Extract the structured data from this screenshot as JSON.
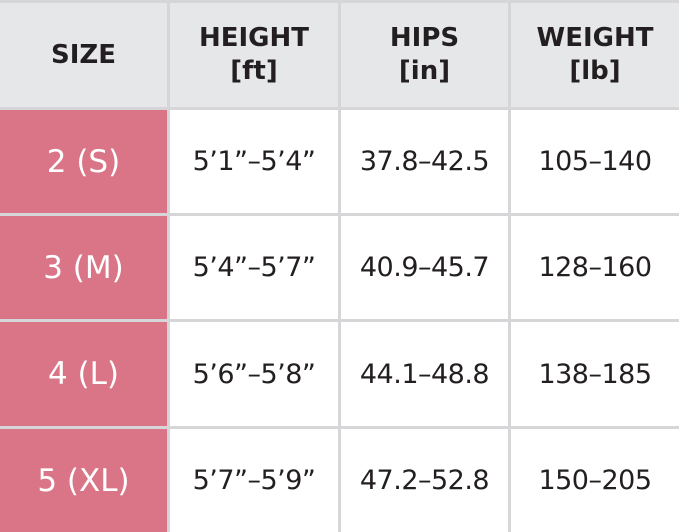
{
  "headers": [
    {
      "line1": "SIZE",
      "line2": ""
    },
    {
      "line1": "HEIGHT",
      "line2": "[ft]"
    },
    {
      "line1": "HIPS",
      "line2": "[in]"
    },
    {
      "line1": "WEIGHT",
      "line2": "[lb]"
    }
  ],
  "rows": [
    {
      "size": "2 (S)",
      "height": "5’1”–5’4”",
      "hips": "37.8–42.5",
      "weight": "105–140"
    },
    {
      "size": "3 (M)",
      "height": "5’4”–5’7”",
      "hips": "40.9–45.7",
      "weight": "128–160"
    },
    {
      "size": "4 (L)",
      "height": "5’6”–5’8”",
      "hips": "44.1–48.8",
      "weight": "138–185"
    },
    {
      "size": "5 (XL)",
      "height": "5’7”–5’9”",
      "hips": "47.2–52.8",
      "weight": "150–205"
    }
  ],
  "colors": {
    "size_cell": "#d97587",
    "header": "#e6e7e9",
    "border": "#d6d6d8"
  }
}
